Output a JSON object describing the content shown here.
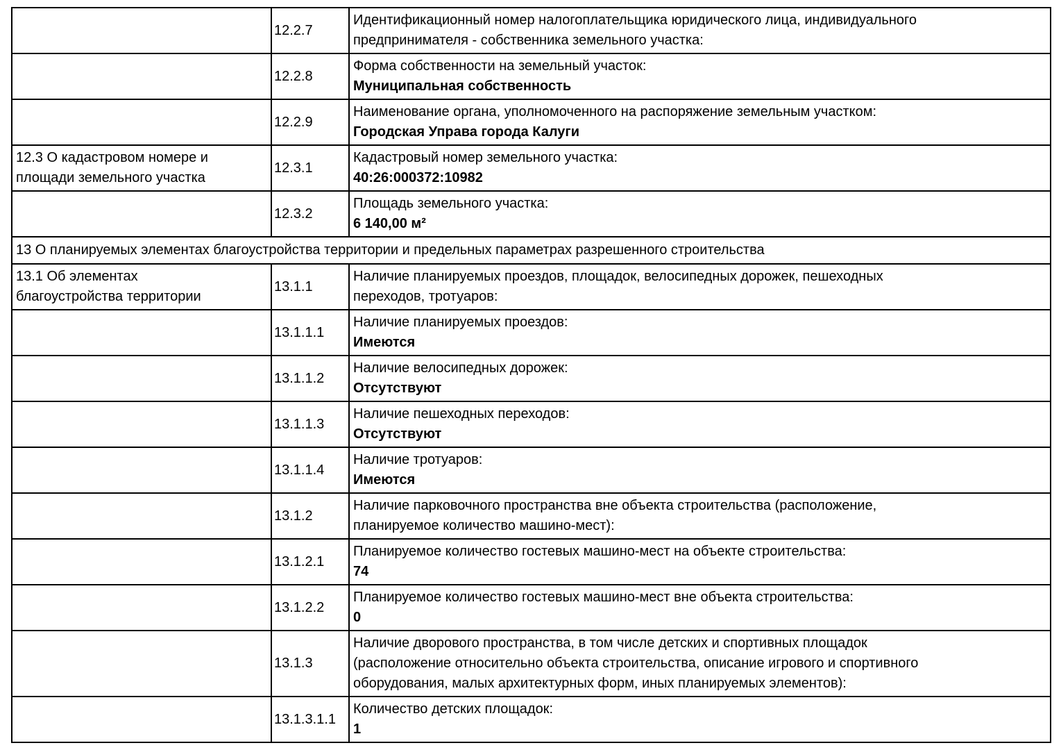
{
  "document": {
    "type_label": "project-declaration-fragment",
    "table": {
      "rows": [
        {
          "type": "data",
          "section": "",
          "num": "12.2.7",
          "label": "Идентификационный номер налогоплательщика юридического лица, индивидуального\nпредпринимателя - собственника земельного участка:",
          "value": ""
        },
        {
          "type": "data",
          "section": "",
          "num": "12.2.8",
          "label": "Форма собственности на земельный участок:",
          "value": "Муниципальная собственность"
        },
        {
          "type": "data",
          "section": "",
          "num": "12.2.9",
          "label": "Наименование органа, уполномоченного на распоряжение земельным участком:",
          "value": "Городская Управа города Калуги"
        },
        {
          "type": "data",
          "section": "12.3 О кадастровом номере и\nплощади земельного участка",
          "num": "12.3.1",
          "label": "Кадастровый номер земельного участка:",
          "value": "40:26:000372:10982"
        },
        {
          "type": "data",
          "section": "",
          "num": "12.3.2",
          "label": "Площадь земельного участка:",
          "value": "6 140,00 м²"
        },
        {
          "type": "section",
          "title": "13 О планируемых элементах благоустройства территории и предельных параметрах разрешенного строительства"
        },
        {
          "type": "data",
          "section": "13.1 Об элементах\nблагоустройства территории",
          "num": "13.1.1",
          "label": "Наличие планируемых проездов, площадок, велосипедных дорожек, пешеходных\nпереходов, тротуаров:",
          "value": ""
        },
        {
          "type": "data",
          "section": "",
          "num": "13.1.1.1",
          "label": "Наличие планируемых проездов:",
          "value": "Имеются"
        },
        {
          "type": "data",
          "section": "",
          "num": "13.1.1.2",
          "label": "Наличие велосипедных дорожек:",
          "value": "Отсутствуют"
        },
        {
          "type": "data",
          "section": "",
          "num": "13.1.1.3",
          "label": "Наличие пешеходных переходов:",
          "value": "Отсутствуют"
        },
        {
          "type": "data",
          "section": "",
          "num": "13.1.1.4",
          "label": "Наличие тротуаров:",
          "value": "Имеются"
        },
        {
          "type": "data",
          "section": "",
          "num": "13.1.2",
          "label": "Наличие парковочного пространства вне объекта строительства (расположение,\nпланируемое количество машино-мест):",
          "value": ""
        },
        {
          "type": "data",
          "section": "",
          "num": "13.1.2.1",
          "label": "Планируемое количество гостевых машино-мест на объекте строительства:",
          "value": "74"
        },
        {
          "type": "data",
          "section": "",
          "num": "13.1.2.2",
          "label": "Планируемое количество гостевых машино-мест вне объекта строительства:",
          "value": "0"
        },
        {
          "type": "data",
          "section": "",
          "num": "13.1.3",
          "label": "Наличие дворового пространства, в том числе детских и спортивных площадок\n(расположение относительно объекта строительства, описание игрового и спортивного\nоборудования, малых архитектурных форм, иных планируемых элементов):",
          "value": ""
        },
        {
          "type": "data",
          "section": "",
          "num": "13.1.3.1.1",
          "label": "Количество детских площадок:",
          "value": "1"
        }
      ]
    }
  }
}
